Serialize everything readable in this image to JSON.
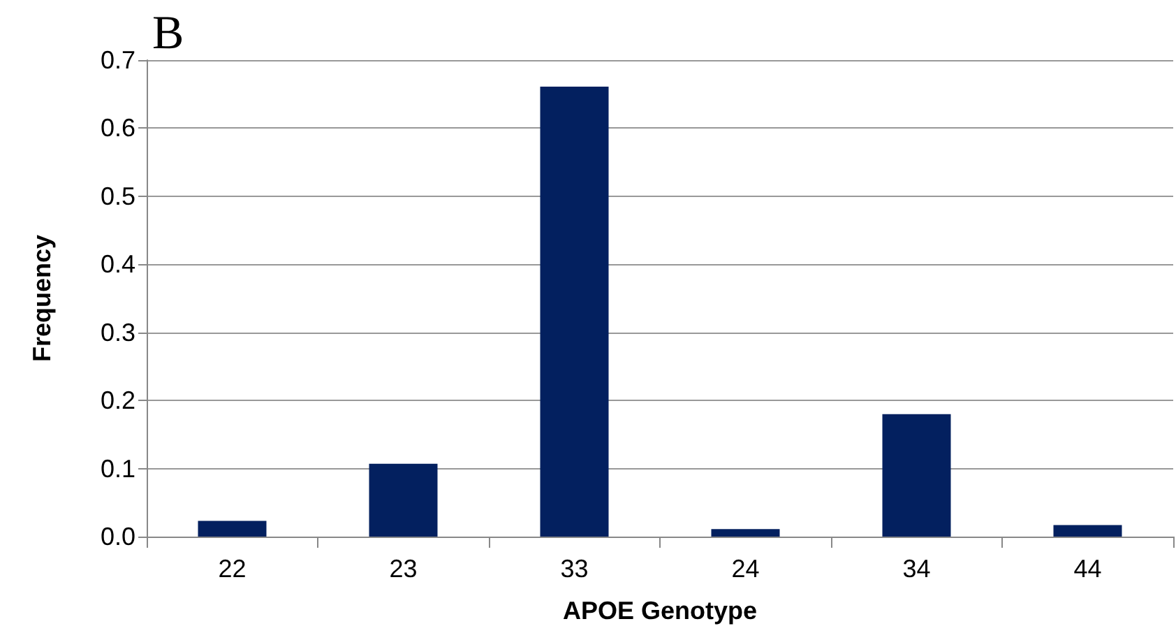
{
  "chart_data": {
    "type": "bar",
    "title": "B",
    "xlabel": "APOE Genotype",
    "ylabel": "Frequency",
    "categories": [
      "22",
      "23",
      "33",
      "24",
      "34",
      "44"
    ],
    "values": [
      0.023,
      0.107,
      0.661,
      0.011,
      0.18,
      0.017
    ],
    "color": "#03205f",
    "ylim": [
      0,
      0.7
    ],
    "yticks": [
      {
        "value": 0,
        "label": "0.0"
      },
      0.1,
      0.2,
      0.3,
      0.4,
      0.5,
      0.6,
      0.7
    ],
    "grid": "y"
  }
}
